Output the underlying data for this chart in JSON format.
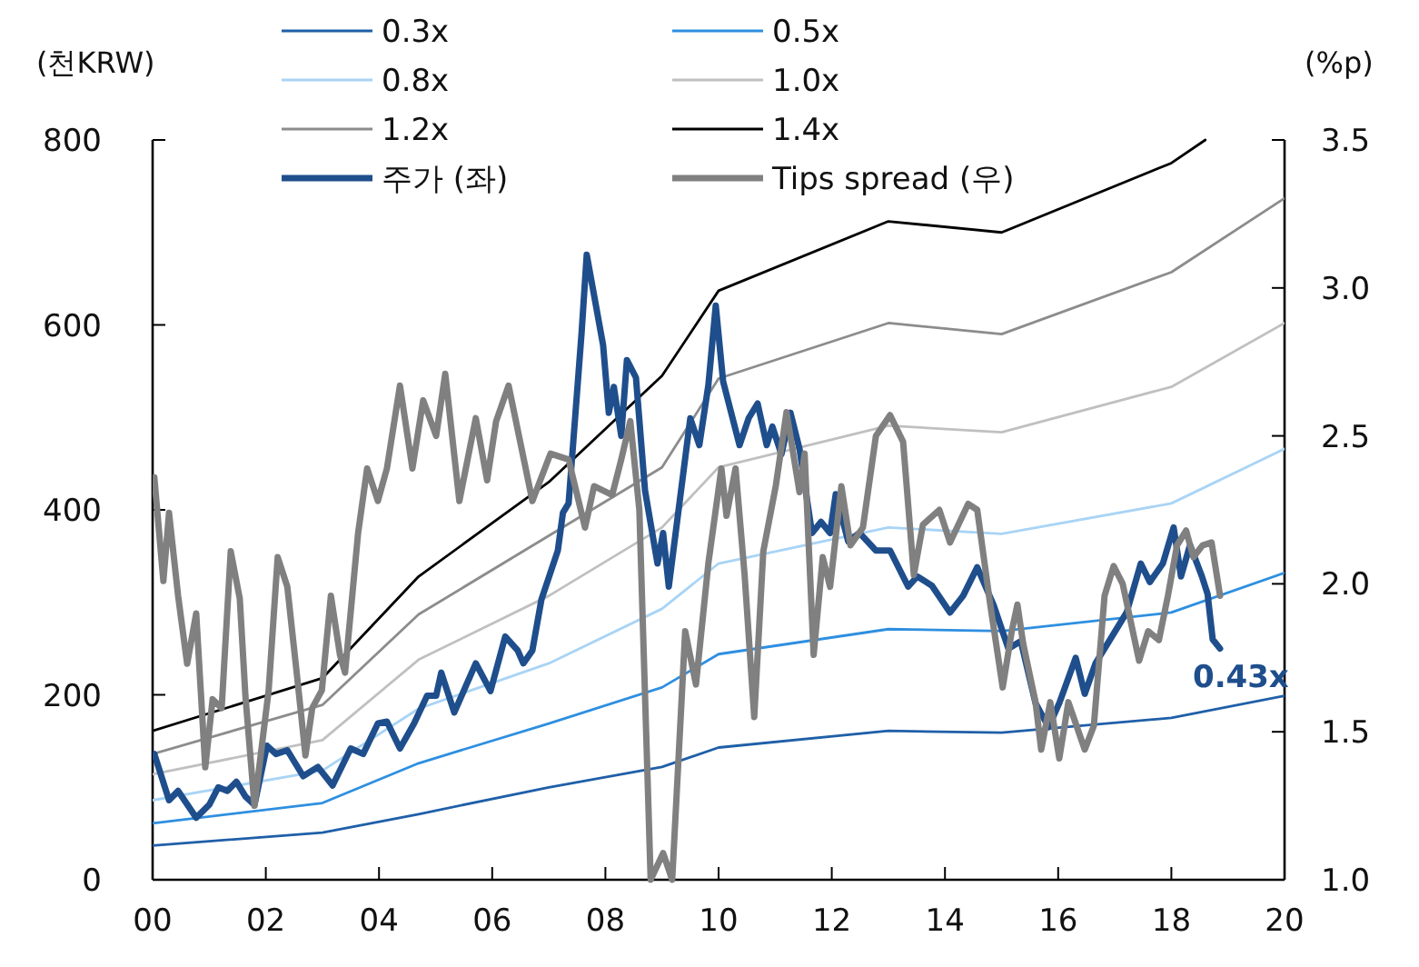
{
  "chart_data": {
    "type": "line",
    "ylabel": "(천KRW)",
    "y2label": "(%p)",
    "xlim": [
      2000,
      2020
    ],
    "xticks": [
      {
        "value": 2000,
        "label": "00"
      },
      {
        "value": 2002,
        "label": "02"
      },
      {
        "value": 2004,
        "label": "04"
      },
      {
        "value": 2006,
        "label": "06"
      },
      {
        "value": 2008,
        "label": "08"
      },
      {
        "value": 2010,
        "label": "10"
      },
      {
        "value": 2012,
        "label": "12"
      },
      {
        "value": 2014,
        "label": "14"
      },
      {
        "value": 2016,
        "label": "16"
      },
      {
        "value": 2018,
        "label": "18"
      },
      {
        "value": 2020,
        "label": "20"
      }
    ],
    "ylim": [
      0,
      800
    ],
    "yticks": [
      0,
      200,
      400,
      600,
      800
    ],
    "y2lim": [
      1,
      3.5
    ],
    "y2ticks": [
      {
        "value": 1,
        "label": "1.0"
      },
      {
        "value": 1.5,
        "label": "1.5"
      },
      {
        "value": 2,
        "label": "2.0"
      },
      {
        "value": 2.5,
        "label": "2.5"
      },
      {
        "value": 3,
        "label": "3.0"
      },
      {
        "value": 3.5,
        "label": "3.5"
      }
    ],
    "legend": "top",
    "grid": false,
    "x": [
      2000,
      2003,
      2004.7,
      2007,
      2009,
      2010,
      2013,
      2015,
      2018,
      2020
    ],
    "series": [
      {
        "name": "0.3x",
        "color": "#1f5fa8",
        "values": [
          37,
          51,
          71,
          100,
          122,
          143,
          161,
          159,
          175,
          199
        ]
      },
      {
        "name": "0.5x",
        "color": "#2e8fe0",
        "values": [
          61,
          83,
          126,
          169,
          208,
          244,
          271,
          269,
          289,
          332
        ]
      },
      {
        "name": "0.8x",
        "color": "#a9d4f5",
        "values": [
          86,
          118,
          185,
          234,
          293,
          342,
          381,
          374,
          407,
          466
        ]
      },
      {
        "name": "1.0x",
        "color": "#c0c0c0",
        "values": [
          114,
          151,
          238,
          307,
          381,
          446,
          491,
          484,
          533,
          602
        ]
      },
      {
        "name": "1.2x",
        "color": "#8c8c8c",
        "values": [
          136,
          189,
          287,
          372,
          446,
          542,
          602,
          590,
          657,
          737
        ]
      },
      {
        "name": "1.4x",
        "color": "#000000",
        "x": [
          2000,
          2003,
          2004.7,
          2007,
          2009,
          2010,
          2013,
          2015,
          2018,
          2018.6
        ],
        "values": [
          161,
          218,
          328,
          430,
          545,
          637,
          712,
          700,
          775,
          800
        ]
      },
      {
        "name": "주가 (좌)",
        "color": "#1f4e8c",
        "x": [
          2000.03,
          2000.29,
          2000.45,
          2000.77,
          2001.0,
          2001.16,
          2001.32,
          2001.48,
          2001.64,
          2001.8,
          2002.02,
          2002.18,
          2002.38,
          2002.66,
          2002.92,
          2003.18,
          2003.5,
          2003.72,
          2003.98,
          2004.14,
          2004.37,
          2004.62,
          2004.85,
          2005.01,
          2005.1,
          2005.33,
          2005.71,
          2005.97,
          2006.23,
          2006.45,
          2006.55,
          2006.71,
          2006.87,
          2007.16,
          2007.25,
          2007.35,
          2007.58,
          2007.67,
          2007.96,
          2008.06,
          2008.15,
          2008.28,
          2008.38,
          2008.54,
          2008.7,
          2008.92,
          2009.02,
          2009.12,
          2009.5,
          2009.66,
          2009.82,
          2009.95,
          2010.08,
          2010.37,
          2010.53,
          2010.69,
          2010.85,
          2010.95,
          2011.11,
          2011.27,
          2011.43,
          2011.65,
          2011.81,
          2011.97,
          2012.07,
          2012.29,
          2012.49,
          2012.78,
          2013.03,
          2013.35,
          2013.51,
          2013.77,
          2014.09,
          2014.32,
          2014.57,
          2014.86,
          2015.12,
          2015.34,
          2015.6,
          2015.83,
          2016.02,
          2016.31,
          2016.47,
          2016.66,
          2016.95,
          2017.21,
          2017.46,
          2017.62,
          2017.85,
          2018.04,
          2018.17,
          2018.33,
          2018.54,
          2018.64,
          2018.73,
          2018.86
        ],
        "values": [
          136,
          86,
          96,
          67,
          81,
          100,
          96,
          106,
          90,
          81,
          145,
          136,
          140,
          112,
          122,
          102,
          142,
          136,
          169,
          171,
          142,
          169,
          199,
          199,
          224,
          181,
          234,
          204,
          263,
          248,
          234,
          248,
          303,
          356,
          397,
          407,
          592,
          676,
          578,
          505,
          533,
          480,
          562,
          543,
          421,
          342,
          375,
          317,
          499,
          470,
          535,
          621,
          539,
          470,
          499,
          515,
          470,
          490,
          460,
          505,
          466,
          375,
          387,
          375,
          417,
          366,
          375,
          356,
          356,
          317,
          328,
          318,
          289,
          307,
          338,
          297,
          250,
          258,
          191,
          165,
          191,
          240,
          201,
          234,
          263,
          289,
          342,
          322,
          342,
          381,
          328,
          362,
          328,
          309,
          260,
          250
        ]
      },
      {
        "name": "Tips spread (우)",
        "color": "#808080",
        "axis": "y2",
        "x": [
          2000.03,
          2000.19,
          2000.29,
          2000.45,
          2000.61,
          2000.77,
          2000.93,
          2001.06,
          2001.22,
          2001.38,
          2001.54,
          2001.64,
          2001.8,
          2002.05,
          2002.21,
          2002.38,
          2002.54,
          2002.7,
          2002.82,
          2002.99,
          2003.15,
          2003.31,
          2003.4,
          2003.63,
          2003.79,
          2003.98,
          2004.14,
          2004.37,
          2004.59,
          2004.78,
          2005.01,
          2005.17,
          2005.42,
          2005.71,
          2005.91,
          2006.07,
          2006.29,
          2006.71,
          2007.03,
          2007.35,
          2007.64,
          2007.8,
          2008.12,
          2008.28,
          2008.44,
          2008.6,
          2008.8,
          2009.02,
          2009.18,
          2009.41,
          2009.6,
          2009.82,
          2010.05,
          2010.14,
          2010.3,
          2010.46,
          2010.63,
          2010.79,
          2011.01,
          2011.2,
          2011.43,
          2011.52,
          2011.68,
          2011.84,
          2011.97,
          2012.17,
          2012.33,
          2012.55,
          2012.78,
          2013.03,
          2013.26,
          2013.45,
          2013.61,
          2013.9,
          2014.09,
          2014.41,
          2014.57,
          2014.8,
          2015.02,
          2015.18,
          2015.28,
          2015.38,
          2015.6,
          2015.7,
          2015.86,
          2016.02,
          2016.18,
          2016.47,
          2016.63,
          2016.82,
          2016.98,
          2017.14,
          2017.43,
          2017.59,
          2017.78,
          2017.94,
          2018.1,
          2018.26,
          2018.39,
          2018.55,
          2018.71,
          2018.86
        ],
        "values": [
          2.36,
          2.01,
          2.24,
          1.96,
          1.73,
          1.9,
          1.38,
          1.61,
          1.58,
          2.11,
          1.95,
          1.62,
          1.25,
          1.64,
          2.09,
          1.99,
          1.71,
          1.42,
          1.58,
          1.64,
          1.96,
          1.76,
          1.7,
          2.17,
          2.39,
          2.28,
          2.39,
          2.67,
          2.39,
          2.62,
          2.5,
          2.71,
          2.28,
          2.56,
          2.35,
          2.55,
          2.67,
          2.28,
          2.44,
          2.42,
          2.19,
          2.33,
          2.3,
          2.42,
          2.55,
          2.25,
          1.0,
          1.09,
          1.0,
          1.84,
          1.66,
          2.07,
          2.39,
          2.23,
          2.39,
          2.03,
          1.55,
          2.11,
          2.33,
          2.58,
          2.31,
          2.44,
          1.76,
          2.09,
          1.99,
          2.33,
          2.13,
          2.19,
          2.5,
          2.57,
          2.48,
          2.03,
          2.2,
          2.25,
          2.14,
          2.27,
          2.25,
          1.93,
          1.65,
          1.84,
          1.93,
          1.8,
          1.6,
          1.44,
          1.6,
          1.41,
          1.6,
          1.44,
          1.52,
          1.96,
          2.06,
          2.0,
          1.74,
          1.84,
          1.81,
          1.96,
          2.13,
          2.18,
          2.09,
          2.13,
          2.14,
          1.96
        ]
      }
    ],
    "annotations": [
      {
        "text": "0.43x",
        "x": 2018.86,
        "y": 250
      }
    ]
  }
}
